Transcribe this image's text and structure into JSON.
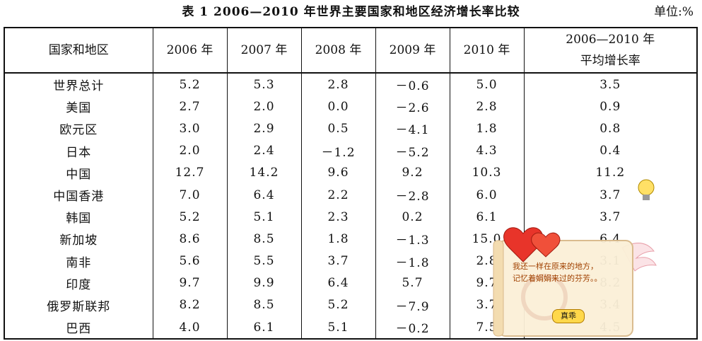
{
  "header": {
    "title": "表 1   2006—2010 年世界主要国家和地区经济增长率比较",
    "unit": "单位:%"
  },
  "table": {
    "columns": [
      "国家和地区",
      "2006 年",
      "2007 年",
      "2008 年",
      "2009 年",
      "2010 年",
      "2006—2010 年\n平均增长率"
    ],
    "rows": [
      [
        "世界总计",
        "5.2",
        "5.3",
        "2.8",
        "－0.6",
        "5.0",
        "3.5"
      ],
      [
        "美国",
        "2.7",
        "2.0",
        "0.0",
        "－2.6",
        "2.8",
        "0.9"
      ],
      [
        "欧元区",
        "3.0",
        "2.9",
        "0.5",
        "－4.1",
        "1.8",
        "0.8"
      ],
      [
        "日本",
        "2.0",
        "2.4",
        "－1.2",
        "－5.2",
        "4.3",
        "0.4"
      ],
      [
        "中国",
        "12.7",
        "14.2",
        "9.6",
        "9.2",
        "10.3",
        "11.2"
      ],
      [
        "中国香港",
        "7.0",
        "6.4",
        "2.2",
        "－2.8",
        "6.0",
        "3.7"
      ],
      [
        "韩国",
        "5.2",
        "5.1",
        "2.3",
        "0.2",
        "6.1",
        "3.7"
      ],
      [
        "新加坡",
        "8.6",
        "8.5",
        "1.8",
        "－1.3",
        "15.0",
        "6.4"
      ],
      [
        "南非",
        "5.6",
        "5.5",
        "3.7",
        "－1.8",
        "2.8",
        "3.1"
      ],
      [
        "印度",
        "9.7",
        "9.9",
        "6.4",
        "5.7",
        "9.7",
        "8.2"
      ],
      [
        "俄罗斯联邦",
        "8.2",
        "8.5",
        "5.2",
        "－7.9",
        "3.7",
        "3.4"
      ],
      [
        "巴西",
        "4.0",
        "6.1",
        "5.1",
        "－0.2",
        "7.5",
        "4.5"
      ]
    ]
  },
  "popup": {
    "message": "我还一样在原来的地方，记忆着娟娟来过的芬芳。。",
    "button": "真乖"
  }
}
